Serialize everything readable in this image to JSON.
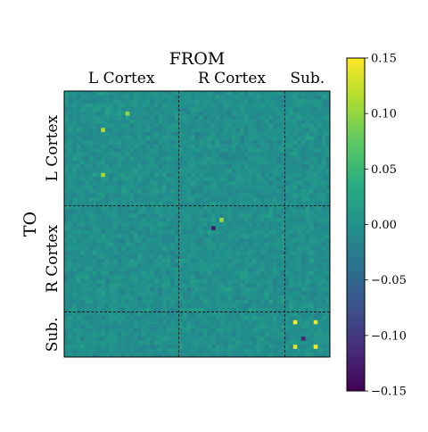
{
  "chart_data": {
    "type": "heatmap",
    "title": "FROM",
    "ylabel": "TO",
    "rows": 65,
    "cols": 65,
    "column_groups": [
      {
        "label": "L Cortex",
        "start": 0,
        "end": 28
      },
      {
        "label": "R Cortex",
        "start": 28,
        "end": 54
      },
      {
        "label": "Sub.",
        "start": 54,
        "end": 65
      }
    ],
    "row_groups": [
      {
        "label": "L Cortex",
        "start": 0,
        "end": 28
      },
      {
        "label": "R Cortex",
        "start": 28,
        "end": 54
      },
      {
        "label": "Sub.",
        "start": 54,
        "end": 65
      }
    ],
    "color_scale": {
      "colormap": "viridis",
      "vmin": -0.15,
      "vmax": 0.15,
      "ticks": [
        0.15,
        0.1,
        0.05,
        0.0,
        -0.05,
        -0.1,
        -0.15
      ],
      "tick_labels": [
        "0.15",
        "0.10",
        "0.05",
        "0.00",
        "−0.05",
        "−0.10",
        "−0.15"
      ]
    },
    "block_dividers": "dashed",
    "notable_values": [
      {
        "row": 9,
        "col": 9,
        "value": 0.12
      },
      {
        "row": 20,
        "col": 9,
        "value": 0.11
      },
      {
        "row": 5,
        "col": 15,
        "value": 0.1
      },
      {
        "row": 33,
        "col": 36,
        "value": -0.13
      },
      {
        "row": 31,
        "col": 38,
        "value": 0.11
      },
      {
        "row": 56,
        "col": 56,
        "value": 0.15
      },
      {
        "row": 56,
        "col": 61,
        "value": 0.14
      },
      {
        "row": 62,
        "col": 56,
        "value": 0.14
      },
      {
        "row": 62,
        "col": 61,
        "value": 0.15
      },
      {
        "row": 60,
        "col": 58,
        "value": -0.12
      }
    ]
  }
}
